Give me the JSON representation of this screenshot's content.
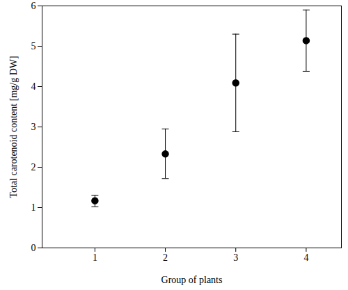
{
  "chart_data": {
    "type": "scatter",
    "x_label": "Group of plants",
    "y_label": "Total carotenoid content [mg/g DW]",
    "x": [
      1,
      2,
      3,
      4
    ],
    "values": [
      1.17,
      2.33,
      4.09,
      5.14
    ],
    "error_lower": [
      1.02,
      1.72,
      2.88,
      4.38
    ],
    "error_upper": [
      1.3,
      2.95,
      5.3,
      5.9
    ],
    "color": "#000000",
    "marker": "circle",
    "xlim": [
      0.25,
      4.5
    ],
    "xticks": [
      1,
      2,
      3,
      4
    ],
    "ylim": [
      0,
      6
    ],
    "yticks": [
      0,
      1,
      2,
      3,
      4,
      5,
      6
    ],
    "grid": false
  }
}
